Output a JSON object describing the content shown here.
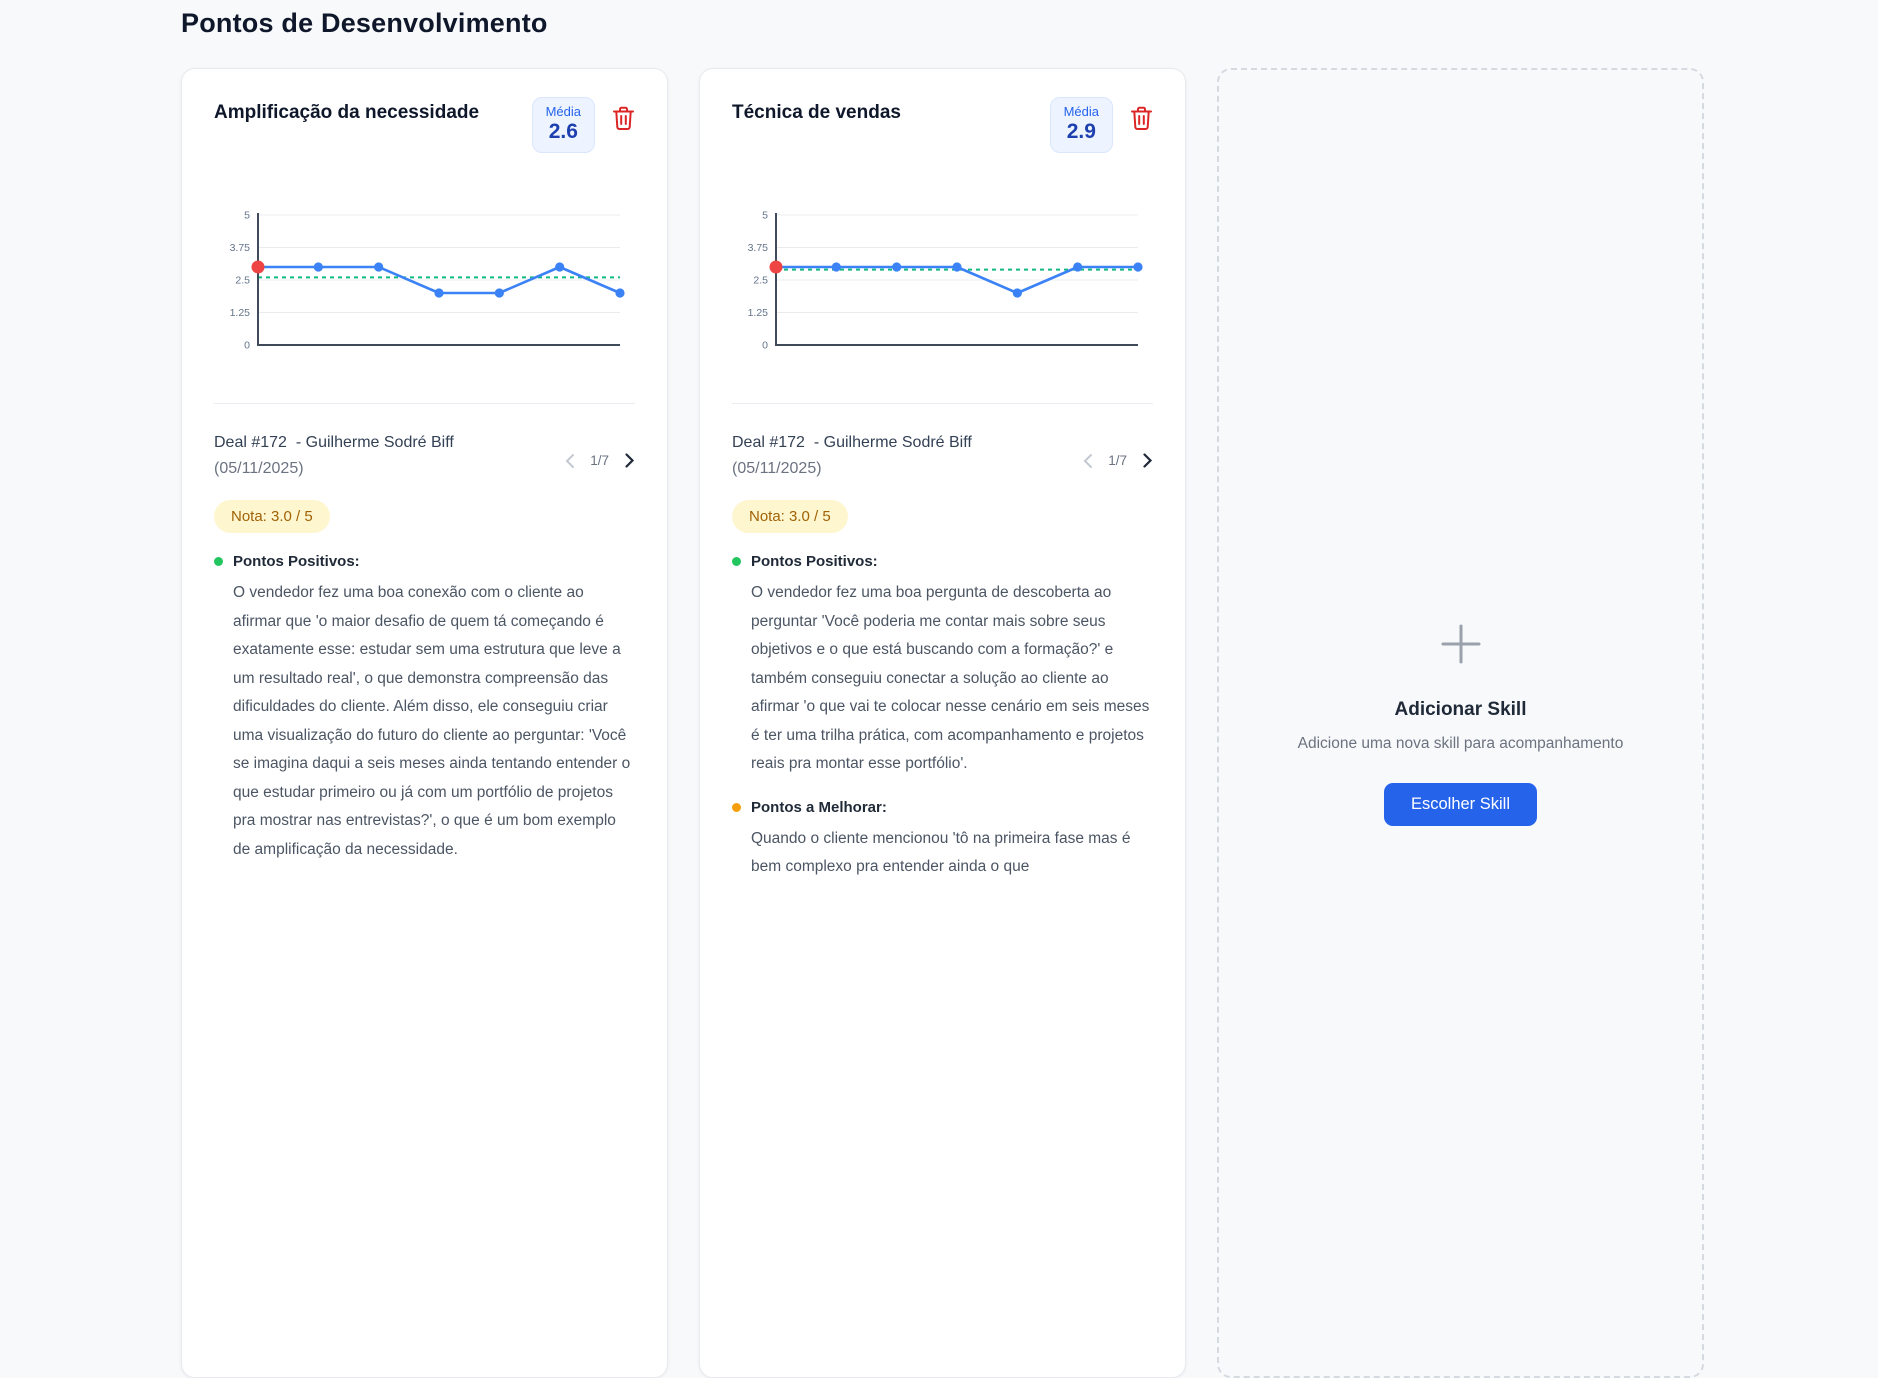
{
  "page": {
    "title": "Pontos de Desenvolvimento"
  },
  "colors": {
    "accent_blue": "#2563eb",
    "badge_bg": "#eef4ff",
    "badge_value": "#1e40af",
    "danger_red": "#dc2626",
    "nota_bg": "#fdf6ce",
    "nota_text": "#a16207",
    "positive_green": "#22c55e",
    "improve_orange": "#f59e0b",
    "line_blue": "#3b82f6",
    "mean_green": "#10b981",
    "highlight_red": "#ef4444"
  },
  "skills": [
    {
      "title": "Amplificação da necessidade",
      "media_label": "Média",
      "media_value": "2.6",
      "deal": {
        "id": "Deal #172",
        "name": "- Guilherme Sodré Biff",
        "date": "(05/11/2025)"
      },
      "pager": {
        "count": "1/7"
      },
      "nota": "Nota: 3.0 / 5",
      "sections": {
        "positives_label": "Pontos Positivos:",
        "positives_text": "O vendedor fez uma boa conexão com o cliente ao afirmar que 'o maior desafio de quem tá começando é exatamente esse: estudar sem uma estrutura que leve a um resultado real', o que demonstra compreensão das dificuldades do cliente. Além disso, ele conseguiu criar uma visualização do futuro do cliente ao perguntar: 'Você se imagina daqui a seis meses ainda tentando entender o que estudar primeiro ou já com um portfólio de projetos pra mostrar nas entrevistas?', o que é um bom exemplo de amplificação da necessidade."
      }
    },
    {
      "title": "Técnica de vendas",
      "media_label": "Média",
      "media_value": "2.9",
      "deal": {
        "id": "Deal #172",
        "name": "- Guilherme Sodré Biff",
        "date": "(05/11/2025)"
      },
      "pager": {
        "count": "1/7"
      },
      "nota": "Nota: 3.0 / 5",
      "sections": {
        "positives_label": "Pontos Positivos:",
        "positives_text": "O vendedor fez uma boa pergunta de descoberta ao perguntar 'Você poderia me contar mais sobre seus objetivos e o que está buscando com a formação?' e também conseguiu conectar a solução ao cliente ao afirmar 'o que vai te colocar nesse cenário em seis meses é ter uma trilha prática, com acompanhamento e projetos reais pra montar esse portfólio'.",
        "improve_label": "Pontos a Melhorar:",
        "improve_text": "Quando o cliente mencionou 'tô na primeira fase mas é bem complexo pra entender ainda o que"
      }
    }
  ],
  "add_skill": {
    "title": "Adicionar Skill",
    "subtitle": "Adicione uma nova skill para acompanhamento",
    "button_label": "Escolher Skill"
  },
  "chart_data": [
    {
      "type": "line",
      "title": "Amplificação da necessidade — notas por deal",
      "x": [
        1,
        2,
        3,
        4,
        5,
        6,
        7
      ],
      "values": [
        3.0,
        3.0,
        3.0,
        2.0,
        2.0,
        3.0,
        2.0
      ],
      "mean": 2.6,
      "highlight_index": 0,
      "ylim": [
        0,
        5
      ],
      "yticks": [
        0,
        1.25,
        2.5,
        3.75,
        5
      ],
      "grid": true,
      "legend": "none",
      "line_color": "#3b82f6",
      "mean_color": "#10b981",
      "highlight_color": "#ef4444"
    },
    {
      "type": "line",
      "title": "Técnica de vendas — notas por deal",
      "x": [
        1,
        2,
        3,
        4,
        5,
        6,
        7
      ],
      "values": [
        3.0,
        3.0,
        3.0,
        3.0,
        2.0,
        3.0,
        3.0
      ],
      "mean": 2.9,
      "highlight_index": 0,
      "ylim": [
        0,
        5
      ],
      "yticks": [
        0,
        1.25,
        2.5,
        3.75,
        5
      ],
      "grid": true,
      "legend": "none",
      "line_color": "#3b82f6",
      "mean_color": "#10b981",
      "highlight_color": "#ef4444"
    }
  ]
}
